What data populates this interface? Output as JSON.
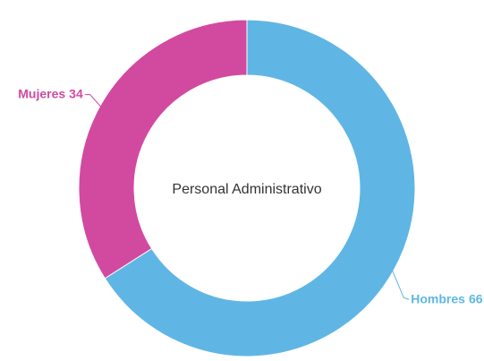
{
  "chart_data": {
    "type": "donut",
    "center_label": "Personal Administrativo",
    "categories": [
      "Hombres",
      "Mujeres"
    ],
    "values": [
      66,
      34
    ],
    "colors": [
      "#5fb6e4",
      "#d14aa0"
    ]
  }
}
